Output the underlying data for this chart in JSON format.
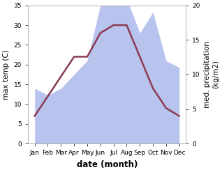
{
  "months": [
    "Jan",
    "Feb",
    "Mar",
    "Apr",
    "May",
    "Jun",
    "Jul",
    "Aug",
    "Sep",
    "Oct",
    "Nov",
    "Dec"
  ],
  "month_indices": [
    0,
    1,
    2,
    3,
    4,
    5,
    6,
    7,
    8,
    9,
    10,
    11
  ],
  "temperature": [
    7,
    12,
    17,
    22,
    22,
    28,
    30,
    30,
    22,
    14,
    9,
    7
  ],
  "precipitation": [
    8,
    7,
    8,
    10,
    12,
    20,
    21,
    21,
    16,
    19,
    12,
    11
  ],
  "temp_color": "#8b3a52",
  "precip_fill_color": "#b8c4ee",
  "background_color": "#ffffff",
  "ylim_left": [
    0,
    35
  ],
  "ylim_right": [
    0,
    20
  ],
  "yticks_left": [
    0,
    5,
    10,
    15,
    20,
    25,
    30,
    35
  ],
  "yticks_right": [
    0,
    5,
    10,
    15,
    20
  ],
  "ylabel_left": "max temp (C)",
  "ylabel_right": "med. precipitation\n(kg/m2)",
  "xlabel": "date (month)",
  "temp_linewidth": 1.8,
  "tick_label_fontsize": 6.5,
  "axis_label_fontsize": 7.5,
  "xlabel_fontsize": 8.5,
  "figsize": [
    3.18,
    2.47
  ],
  "dpi": 100
}
